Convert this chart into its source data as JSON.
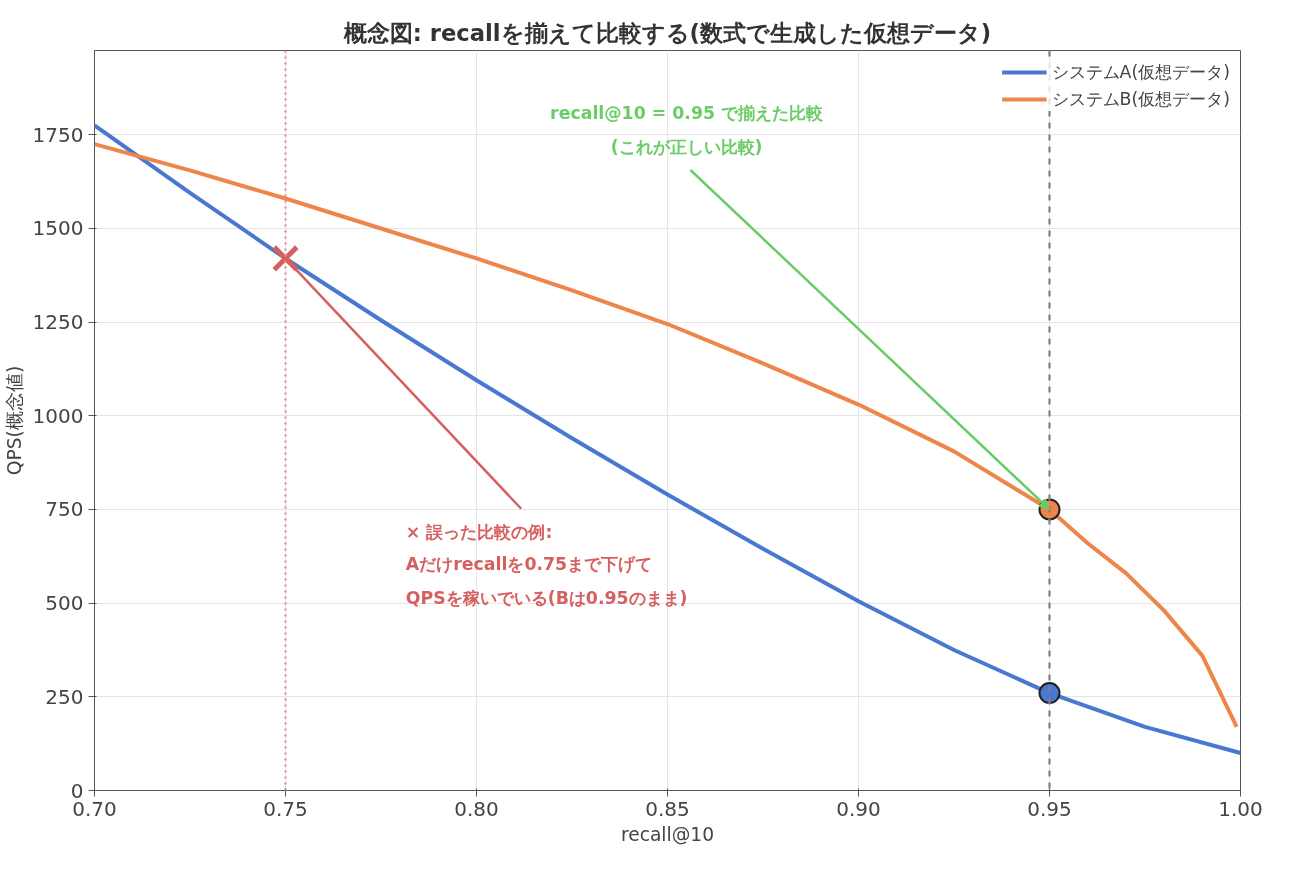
{
  "chart_data": {
    "type": "line",
    "title": "概念図: recallを揃えて比較する(数式で生成した仮想データ)",
    "xlabel": "recall@10",
    "ylabel": "QPS(概念値)",
    "xlim": [
      0.7,
      1.0
    ],
    "xticks": [
      {
        "value": 0.7,
        "label": "0.70"
      },
      {
        "value": 0.75,
        "label": "0.75"
      },
      {
        "value": 0.8,
        "label": "0.80"
      },
      {
        "value": 0.85,
        "label": "0.85"
      },
      {
        "value": 0.9,
        "label": "0.90"
      },
      {
        "value": 0.95,
        "label": "0.95"
      },
      {
        "value": 1.0,
        "label": "1.00"
      }
    ],
    "ylim": [
      0,
      1975
    ],
    "yticks": [
      0,
      250,
      500,
      750,
      1000,
      1250,
      1500,
      1750
    ],
    "grid": true,
    "legend": "top right",
    "series": [
      {
        "name": "システムA(仮想データ)",
        "color": "#4878d0",
        "x": [
          0.7,
          0.725,
          0.75,
          0.775,
          0.8,
          0.825,
          0.85,
          0.875,
          0.9,
          0.925,
          0.95,
          0.975,
          1.0
        ],
        "values": [
          1775,
          1595,
          1420,
          1255,
          1095,
          940,
          790,
          645,
          505,
          375,
          260,
          170,
          100
        ]
      },
      {
        "name": "システムB(仮想データ)",
        "color": "#ee854a",
        "x": [
          0.7,
          0.725,
          0.75,
          0.775,
          0.8,
          0.825,
          0.85,
          0.875,
          0.9,
          0.925,
          0.95,
          0.96,
          0.97,
          0.98,
          0.99,
          0.999
        ],
        "values": [
          1725,
          1655,
          1580,
          1500,
          1420,
          1335,
          1245,
          1140,
          1030,
          905,
          750,
          660,
          580,
          480,
          360,
          170
        ]
      },
      {
        "type": "scatter",
        "marker": "circle",
        "color": "#4878d0",
        "x": [
          0.95
        ],
        "values": [
          260
        ]
      },
      {
        "type": "scatter",
        "marker": "circle",
        "color": "#ee854a",
        "x": [
          0.95
        ],
        "values": [
          750
        ]
      },
      {
        "type": "scatter",
        "marker": "cross",
        "color": "#d65f5f",
        "x": [
          0.75
        ],
        "values": [
          1420
        ]
      }
    ],
    "ref_lines": [
      {
        "axis": "x",
        "value": 0.95,
        "color": "#808080",
        "line_style": "dashed"
      },
      {
        "axis": "x",
        "value": 0.75,
        "color": "#e8888a",
        "line_style": "dotted"
      }
    ],
    "annotations": [
      {
        "text": "recall@10 = 0.95 で揃えた比較\n(これが正しい比較)",
        "x": 0.95,
        "y": 750
      },
      {
        "text": "× 誤った比較の例:\nAだけrecallを0.75まで下げて\nQPSを稼いでいる(Bは0.95のまま)",
        "x": 0.75,
        "y": 1420
      }
    ]
  }
}
